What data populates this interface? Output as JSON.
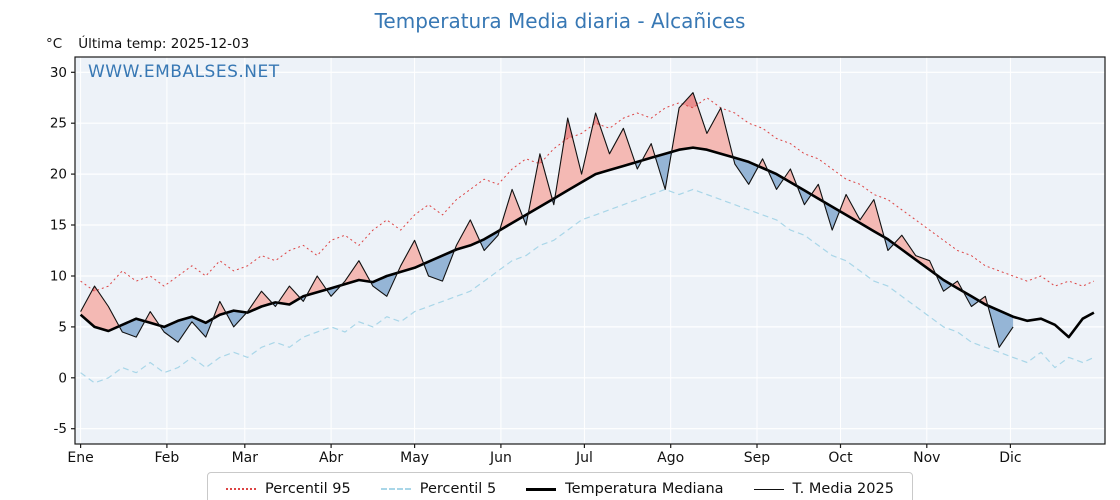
{
  "header": {
    "unit": "°C",
    "last_temp": "Última temp: 2025-12-03",
    "watermark": "WWW.EMBALSES.NET"
  },
  "colors": {
    "accent": "#3878b4",
    "plot_bg": "#edf2f8",
    "grid": "#ffffff",
    "spine": "#1a1a1a"
  },
  "chart_data": {
    "type": "line",
    "title": "Temperatura Media diaria - Alcañices",
    "ylabel": "°C",
    "ylim": [
      -6.5,
      31.5
    ],
    "xlim": [
      -2,
      368
    ],
    "yticks": [
      -5,
      0,
      5,
      10,
      15,
      20,
      25,
      30
    ],
    "yticklabels": [
      "-5",
      "0",
      "5",
      "10",
      "15",
      "20",
      "25",
      "30"
    ],
    "x_unit": "day_of_year",
    "month_ticks": {
      "days": [
        0,
        31,
        59,
        90,
        120,
        151,
        181,
        212,
        243,
        273,
        304,
        334
      ],
      "labels": [
        "Ene",
        "Feb",
        "Mar",
        "Abr",
        "May",
        "Jun",
        "Jul",
        "Ago",
        "Sep",
        "Oct",
        "Nov",
        "Dic"
      ]
    },
    "legend_position": "bottom-center",
    "grid": true,
    "x_days": [
      0,
      5,
      10,
      15,
      20,
      25,
      30,
      35,
      40,
      45,
      50,
      55,
      60,
      65,
      70,
      75,
      80,
      85,
      90,
      95,
      100,
      105,
      110,
      115,
      120,
      125,
      130,
      135,
      140,
      145,
      150,
      155,
      160,
      165,
      170,
      175,
      180,
      185,
      190,
      195,
      200,
      205,
      210,
      215,
      220,
      225,
      230,
      235,
      240,
      245,
      250,
      255,
      260,
      265,
      270,
      275,
      280,
      285,
      290,
      295,
      300,
      305,
      310,
      315,
      320,
      325,
      330,
      335,
      340,
      345,
      350,
      355,
      360,
      364
    ],
    "series": [
      {
        "name": "Percentil 95",
        "color": "#dd4444",
        "dash": "dotted",
        "width": 1,
        "values": [
          9.5,
          8.5,
          9.0,
          10.5,
          9.5,
          10.0,
          9.0,
          10.0,
          11.0,
          10.0,
          11.5,
          10.5,
          11.0,
          12.0,
          11.5,
          12.5,
          13.0,
          12.0,
          13.5,
          14.0,
          13.0,
          14.5,
          15.5,
          14.5,
          16.0,
          17.0,
          16.0,
          17.5,
          18.5,
          19.5,
          19.0,
          20.5,
          21.5,
          21.0,
          22.5,
          23.5,
          24.0,
          25.0,
          24.5,
          25.5,
          26.0,
          25.5,
          26.5,
          27.0,
          26.5,
          27.5,
          26.5,
          26.0,
          25.0,
          24.5,
          23.5,
          23.0,
          22.0,
          21.5,
          20.5,
          19.5,
          19.0,
          18.0,
          17.5,
          16.5,
          15.5,
          14.5,
          13.5,
          12.5,
          12.0,
          11.0,
          10.5,
          10.0,
          9.5,
          10.0,
          9.0,
          9.5,
          9.0,
          9.5
        ]
      },
      {
        "name": "Percentil 5",
        "color": "#a9d6e8",
        "dash": "dashed",
        "width": 1.2,
        "values": [
          0.5,
          -0.5,
          0.0,
          1.0,
          0.5,
          1.5,
          0.5,
          1.0,
          2.0,
          1.0,
          2.0,
          2.5,
          2.0,
          3.0,
          3.5,
          3.0,
          4.0,
          4.5,
          5.0,
          4.5,
          5.5,
          5.0,
          6.0,
          5.5,
          6.5,
          7.0,
          7.5,
          8.0,
          8.5,
          9.5,
          10.5,
          11.5,
          12.0,
          13.0,
          13.5,
          14.5,
          15.5,
          16.0,
          16.5,
          17.0,
          17.5,
          18.0,
          18.5,
          18.0,
          18.5,
          18.0,
          17.5,
          17.0,
          16.5,
          16.0,
          15.5,
          14.5,
          14.0,
          13.0,
          12.0,
          11.5,
          10.5,
          9.5,
          9.0,
          8.0,
          7.0,
          6.0,
          5.0,
          4.5,
          3.5,
          3.0,
          2.5,
          2.0,
          1.5,
          2.5,
          1.0,
          2.0,
          1.5,
          2.0
        ]
      },
      {
        "name": "Temperatura Mediana",
        "color": "#000000",
        "dash": "solid",
        "width": 2.6,
        "values": [
          6.2,
          5.0,
          4.6,
          5.2,
          5.8,
          5.4,
          5.0,
          5.6,
          6.0,
          5.4,
          6.2,
          6.6,
          6.4,
          7.0,
          7.4,
          7.2,
          8.0,
          8.4,
          8.8,
          9.2,
          9.6,
          9.4,
          10.0,
          10.4,
          10.8,
          11.4,
          12.0,
          12.6,
          13.0,
          13.6,
          14.4,
          15.2,
          16.0,
          16.8,
          17.6,
          18.4,
          19.2,
          20.0,
          20.4,
          20.8,
          21.2,
          21.6,
          22.0,
          22.4,
          22.6,
          22.4,
          22.0,
          21.6,
          21.2,
          20.6,
          20.0,
          19.2,
          18.4,
          17.6,
          16.8,
          16.0,
          15.2,
          14.4,
          13.6,
          12.6,
          11.6,
          10.6,
          9.6,
          8.8,
          8.0,
          7.2,
          6.6,
          6.0,
          5.6,
          5.8,
          5.2,
          4.0,
          5.8,
          6.4
        ]
      },
      {
        "name": "T. Media 2025",
        "color": "#111111",
        "dash": "solid",
        "width": 1.1,
        "values": [
          6.5,
          9.0,
          7.0,
          4.5,
          4.0,
          6.5,
          4.5,
          3.5,
          5.5,
          4.0,
          7.5,
          5.0,
          6.5,
          8.5,
          7.0,
          9.0,
          7.5,
          10.0,
          8.0,
          9.5,
          11.5,
          9.0,
          8.0,
          11.0,
          13.5,
          10.0,
          9.5,
          13.0,
          15.5,
          12.5,
          14.0,
          18.5,
          15.0,
          22.0,
          17.0,
          25.5,
          20.0,
          26.0,
          22.0,
          24.5,
          20.5,
          23.0,
          18.5,
          26.5,
          28.0,
          24.0,
          26.5,
          21.0,
          19.0,
          21.5,
          18.5,
          20.5,
          17.0,
          19.0,
          14.5,
          18.0,
          15.5,
          17.5,
          12.5,
          14.0,
          12.0,
          11.5,
          8.5,
          9.5,
          7.0,
          8.0,
          3.0,
          5.0,
          null,
          null,
          null,
          null,
          null,
          null
        ]
      }
    ],
    "fills": {
      "above_median": "#f4b9b4",
      "below_median": "#95b5d6",
      "above_p95": "#ea8f8f",
      "below_p5": "#7aa3c8"
    }
  }
}
